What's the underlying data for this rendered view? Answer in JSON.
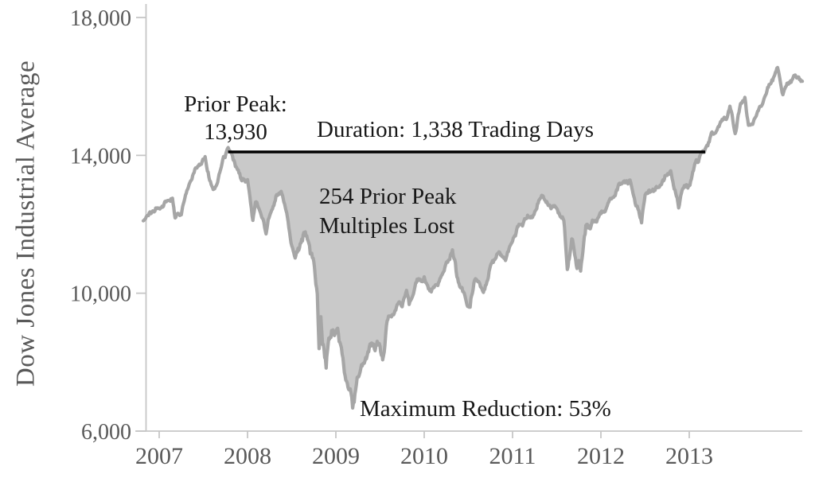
{
  "figure": {
    "ylabel": "Dow Jones Industrial Average"
  },
  "annotations": {
    "prior_peak_label": "Prior Peak:",
    "prior_peak_value": "13,930",
    "duration": "Duration: 1,338 Trading Days",
    "multiples_line1": "254 Prior Peak",
    "multiples_line2": "Multiples Lost",
    "max_reduction": "Maximum Reduction: 53%"
  },
  "chart_data": {
    "type": "line",
    "title": "",
    "xlabel": "",
    "ylabel": "Dow Jones Industrial Average",
    "grid": false,
    "legend_position": "none",
    "ylim": [
      6000,
      18000
    ],
    "xlim": [
      2006.82,
      2014.28
    ],
    "y_tick_labels": [
      "6,000",
      "10,000",
      "14,000",
      "18,000"
    ],
    "y_tick_values": [
      6000,
      10000,
      14000,
      18000
    ],
    "x_tick_labels": [
      "2007",
      "2008",
      "2009",
      "2010",
      "2011",
      "2012",
      "2013"
    ],
    "x_tick_values": [
      2007,
      2008,
      2009,
      2010,
      2011,
      2012,
      2013
    ],
    "series": [
      {
        "name": "Dow Jones Industrial Average",
        "x": [
          2006.82,
          2006.87,
          2006.96,
          2007.08,
          2007.15,
          2007.18,
          2007.25,
          2007.33,
          2007.42,
          2007.52,
          2007.58,
          2007.62,
          2007.67,
          2007.72,
          2007.78,
          2007.83,
          2007.92,
          2008.0,
          2008.06,
          2008.09,
          2008.17,
          2008.21,
          2008.25,
          2008.33,
          2008.38,
          2008.42,
          2008.5,
          2008.54,
          2008.58,
          2008.63,
          2008.67,
          2008.75,
          2008.79,
          2008.81,
          2008.83,
          2008.85,
          2008.89,
          2008.92,
          2009.0,
          2009.02,
          2009.08,
          2009.17,
          2009.19,
          2009.25,
          2009.33,
          2009.42,
          2009.5,
          2009.53,
          2009.58,
          2009.67,
          2009.75,
          2009.8,
          2009.83,
          2009.92,
          2010.0,
          2010.08,
          2010.17,
          2010.25,
          2010.32,
          2010.37,
          2010.42,
          2010.5,
          2010.52,
          2010.58,
          2010.67,
          2010.75,
          2010.83,
          2010.92,
          2011.0,
          2011.08,
          2011.17,
          2011.25,
          2011.33,
          2011.42,
          2011.5,
          2011.58,
          2011.62,
          2011.65,
          2011.67,
          2011.73,
          2011.75,
          2011.77,
          2011.83,
          2011.92,
          2012.0,
          2012.08,
          2012.17,
          2012.25,
          2012.33,
          2012.42,
          2012.46,
          2012.5,
          2012.58,
          2012.67,
          2012.75,
          2012.79,
          2012.83,
          2012.88,
          2012.92,
          2013.0,
          2013.08,
          2013.17,
          2013.25,
          2013.33,
          2013.42,
          2013.46,
          2013.52,
          2013.58,
          2013.63,
          2013.67,
          2013.75,
          2013.83,
          2013.92,
          2014.0,
          2014.06,
          2014.13,
          2014.2,
          2014.28
        ],
        "values": [
          12100,
          12222,
          12463,
          12622,
          12780,
          12216,
          12354,
          13063,
          13628,
          13950,
          13212,
          12950,
          13358,
          13896,
          14164,
          13930,
          13372,
          13265,
          12070,
          12650,
          12266,
          11740,
          12263,
          12820,
          13010,
          12638,
          11350,
          10963,
          11378,
          11700,
          11544,
          10851,
          9950,
          8451,
          9325,
          8600,
          7950,
          8829,
          8776,
          9034,
          8001,
          7063,
          6547,
          7609,
          8168,
          8500,
          8447,
          8200,
          9172,
          9496,
          9712,
          10060,
          9713,
          10345,
          10428,
          10067,
          10325,
          10857,
          11205,
          10520,
          10137,
          9774,
          9686,
          10466,
          10015,
          10788,
          11118,
          11006,
          11578,
          11892,
          12226,
          12320,
          12811,
          12570,
          12414,
          12143,
          10810,
          11250,
          11614,
          10770,
          10913,
          10655,
          11955,
          12046,
          12218,
          12633,
          12952,
          13212,
          13214,
          12393,
          12101,
          12880,
          13009,
          13091,
          13437,
          13610,
          13096,
          12542,
          13026,
          13104,
          13861,
          14054,
          14579,
          14840,
          15116,
          15409,
          14700,
          15500,
          15658,
          14810,
          15130,
          15546,
          16086,
          16577,
          15750,
          16100,
          16350,
          16150
        ]
      }
    ],
    "drawdown": {
      "prior_peak_value": "13,930",
      "peak_line_level": 14100,
      "x_start": 2007.78,
      "x_end": 2013.18,
      "duration_trading_days": 1338,
      "prior_peak_multiples_lost": 254,
      "max_reduction_pct": 53
    },
    "colors": {
      "series_line": "#a6a6a6",
      "drawdown_fill": "#c9c9c9",
      "peak_line": "#000000",
      "axis_line": "#c6c6c6",
      "tick_label": "#595959",
      "annotation_text": "#171717",
      "background": "#ffffff"
    }
  }
}
